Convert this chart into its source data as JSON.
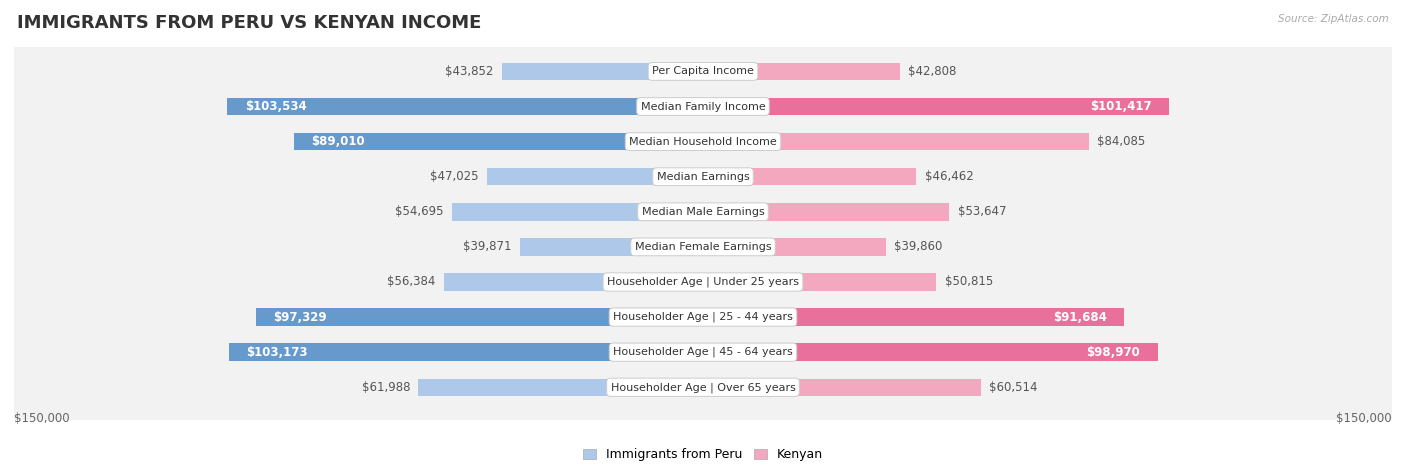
{
  "title": "IMMIGRANTS FROM PERU VS KENYAN INCOME",
  "source": "Source: ZipAtlas.com",
  "categories": [
    "Per Capita Income",
    "Median Family Income",
    "Median Household Income",
    "Median Earnings",
    "Median Male Earnings",
    "Median Female Earnings",
    "Householder Age | Under 25 years",
    "Householder Age | 25 - 44 years",
    "Householder Age | 45 - 64 years",
    "Householder Age | Over 65 years"
  ],
  "peru_values": [
    43852,
    103534,
    89010,
    47025,
    54695,
    39871,
    56384,
    97329,
    103173,
    61988
  ],
  "kenyan_values": [
    42808,
    101417,
    84085,
    46462,
    53647,
    39860,
    50815,
    91684,
    98970,
    60514
  ],
  "peru_labels": [
    "$43,852",
    "$103,534",
    "$89,010",
    "$47,025",
    "$54,695",
    "$39,871",
    "$56,384",
    "$97,329",
    "$103,173",
    "$61,988"
  ],
  "kenyan_labels": [
    "$42,808",
    "$101,417",
    "$84,085",
    "$46,462",
    "$53,647",
    "$39,860",
    "$50,815",
    "$91,684",
    "$98,970",
    "$60,514"
  ],
  "peru_color_light": "#adc8e8",
  "peru_color_dark": "#6699cc",
  "kenyan_color_light": "#f4a8c0",
  "kenyan_color_dark": "#e8709a",
  "max_value": 150000,
  "dark_threshold": 85000,
  "background_color": "#ffffff",
  "row_bg_light": "#f5f5f5",
  "row_bg_dark": "#e8e8e8",
  "title_fontsize": 13,
  "label_fontsize": 8.5,
  "cat_fontsize": 8.0
}
